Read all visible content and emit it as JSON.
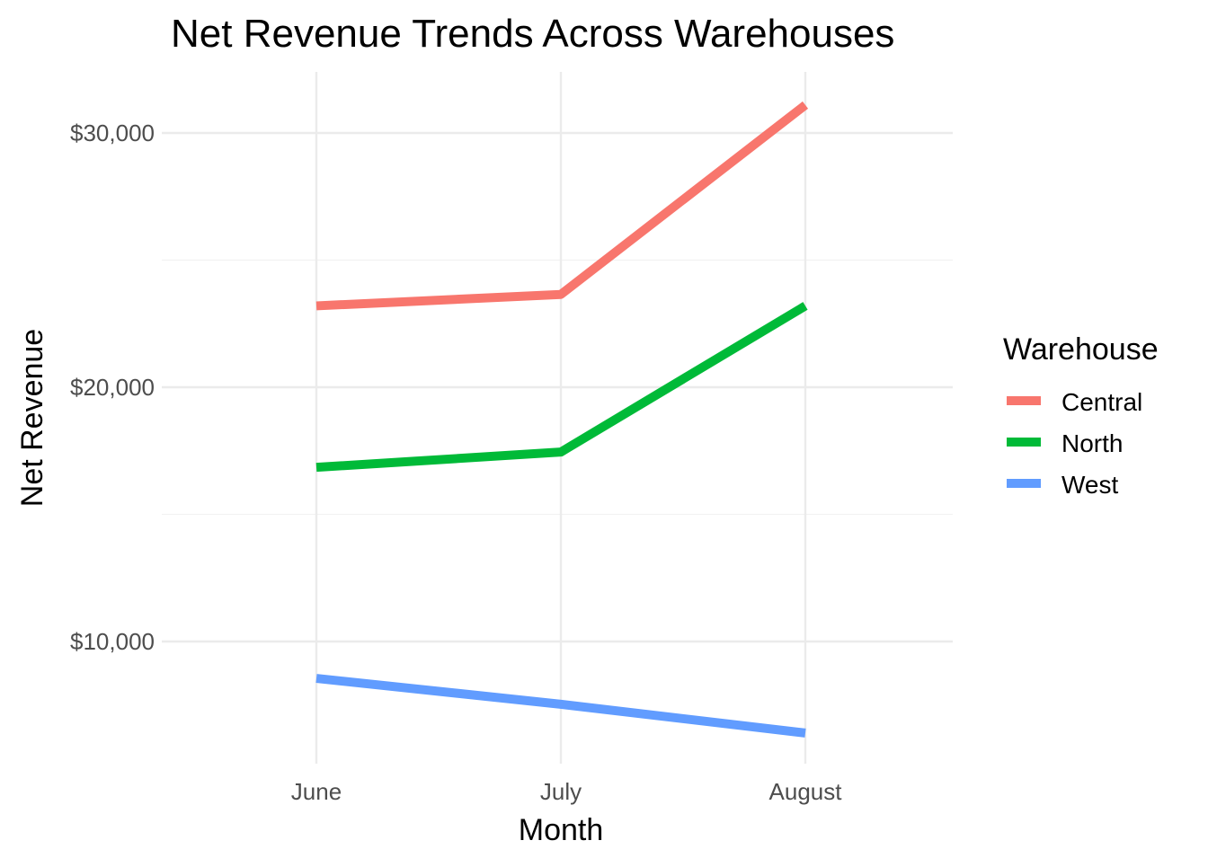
{
  "chart_data": {
    "type": "line",
    "title": "Net Revenue Trends Across Warehouses",
    "xlabel": "Month",
    "ylabel": "Net Revenue",
    "categories": [
      "June",
      "July",
      "August"
    ],
    "yticks": [
      10000,
      20000,
      30000
    ],
    "ytick_labels": [
      "$10,000",
      "$20,000",
      "$30,000"
    ],
    "minor_gridlines": [
      15000,
      25000
    ],
    "ylim": [
      5200,
      32400
    ],
    "grid": true,
    "legend": {
      "title": "Warehouse",
      "placement": "right"
    },
    "series": [
      {
        "name": "Central",
        "color": "#F8766D",
        "values": [
          23200,
          23650,
          31100
        ]
      },
      {
        "name": "North",
        "color": "#00BA38",
        "values": [
          16850,
          17450,
          23200
        ]
      },
      {
        "name": "West",
        "color": "#619CFF",
        "values": [
          8550,
          7530,
          6400
        ]
      }
    ]
  }
}
